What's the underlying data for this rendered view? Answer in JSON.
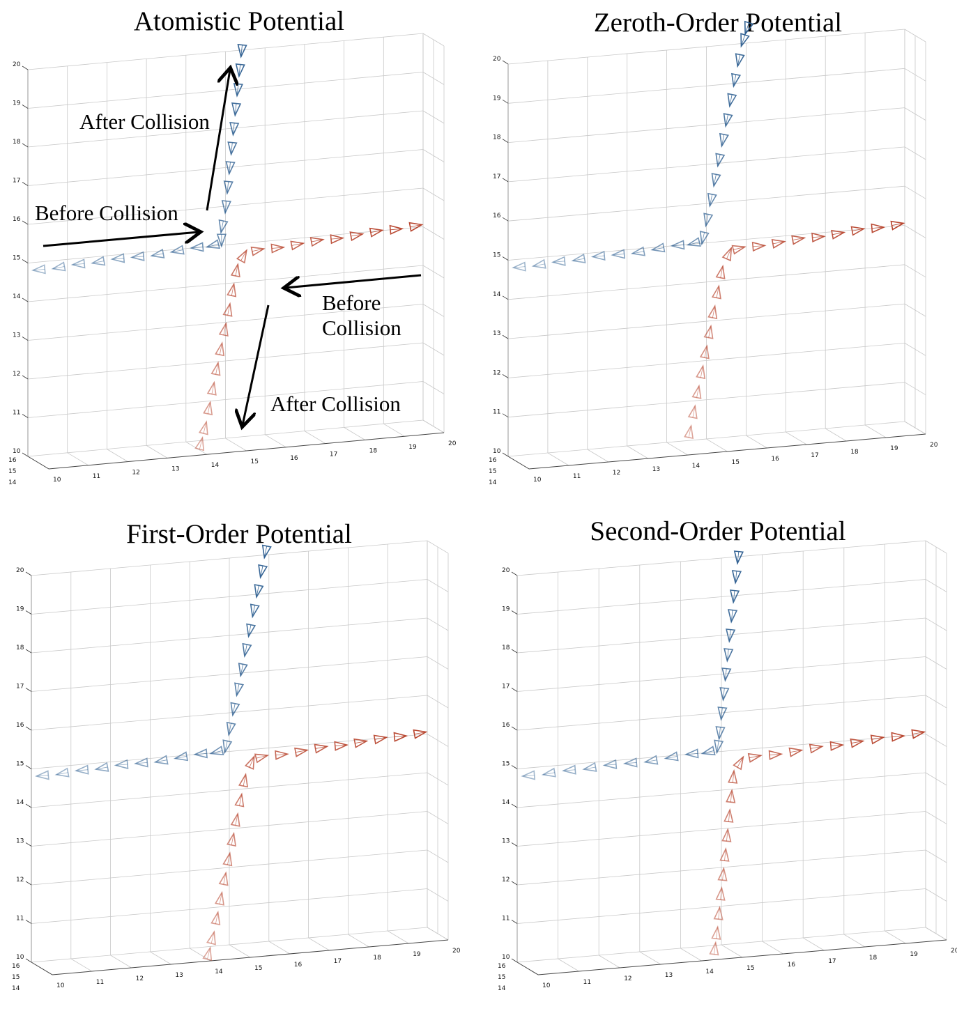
{
  "chart_data": [
    {
      "type": "scatter",
      "title": "Atomistic Potential",
      "xlabel": "",
      "ylabel": "",
      "zlabel": "",
      "xlim": [
        10,
        20
      ],
      "ylim": [
        14,
        16
      ],
      "zlim": [
        10,
        20
      ],
      "grid": true,
      "x_ticks": [
        "10",
        "11",
        "12",
        "13",
        "14",
        "15",
        "16",
        "17",
        "18",
        "19",
        "20"
      ],
      "y_ticks": [
        "14",
        "15",
        "16"
      ],
      "z_ticks": [
        "10",
        "11",
        "12",
        "13",
        "14",
        "15",
        "16",
        "17",
        "18",
        "19",
        "20"
      ],
      "series": [
        {
          "color": "#2e5f91",
          "x": [
            10.2,
            10.7,
            11.2,
            11.7,
            12.2,
            12.7,
            13.2,
            13.7,
            14.2,
            14.6,
            14.9,
            14.9,
            15.0,
            15.05,
            15.1,
            15.15,
            15.2,
            15.25,
            15.3,
            15.35,
            15.4
          ],
          "z": [
            14.8,
            14.8,
            14.85,
            14.85,
            14.9,
            14.9,
            14.9,
            14.95,
            15.0,
            15.0,
            15.05,
            15.4,
            15.9,
            16.4,
            16.9,
            17.4,
            17.9,
            18.4,
            18.9,
            19.4,
            19.9
          ]
        },
        {
          "color": "#b8452e",
          "x": [
            19.9,
            19.4,
            18.9,
            18.4,
            17.9,
            17.4,
            16.9,
            16.4,
            15.9,
            15.5,
            15.3,
            15.2,
            15.1,
            15.0,
            14.9,
            14.8,
            14.7,
            14.6,
            14.5,
            14.4
          ],
          "z": [
            15.05,
            15.0,
            15.0,
            14.95,
            14.9,
            14.9,
            14.85,
            14.8,
            14.8,
            14.75,
            14.4,
            13.9,
            13.4,
            12.9,
            12.4,
            11.9,
            11.4,
            10.9,
            10.4,
            10.0
          ]
        }
      ],
      "annotations": [
        "After Collision",
        "Before Collision",
        "Before",
        "Collision",
        "After Collision"
      ]
    },
    {
      "type": "scatter",
      "title": "Zeroth-Order Potential",
      "xlabel": "",
      "ylabel": "",
      "zlabel": "",
      "xlim": [
        10,
        20
      ],
      "ylim": [
        14,
        16
      ],
      "zlim": [
        10,
        20
      ],
      "grid": true,
      "x_ticks": [
        "10",
        "11",
        "12",
        "13",
        "14",
        "15",
        "16",
        "17",
        "18",
        "19",
        "20"
      ],
      "y_ticks": [
        "14",
        "15",
        "16"
      ],
      "z_ticks": [
        "10",
        "11",
        "12",
        "13",
        "14",
        "15",
        "16",
        "17",
        "18",
        "19",
        "20"
      ],
      "series": [
        {
          "color": "#2e5f91",
          "x": [
            10.2,
            10.7,
            11.2,
            11.7,
            12.2,
            12.7,
            13.2,
            13.7,
            14.2,
            14.6,
            14.9,
            15.0,
            15.1,
            15.2,
            15.3,
            15.4,
            15.5,
            15.6,
            15.7,
            15.8,
            15.9,
            16.0
          ],
          "z": [
            14.8,
            14.8,
            14.85,
            14.85,
            14.9,
            14.9,
            14.9,
            14.95,
            15.0,
            15.0,
            15.05,
            15.5,
            16.0,
            16.5,
            17.0,
            17.5,
            18.0,
            18.5,
            19.0,
            19.5,
            20.0,
            20.3
          ]
        },
        {
          "color": "#b8452e",
          "x": [
            19.9,
            19.4,
            18.9,
            18.4,
            17.9,
            17.4,
            16.9,
            16.4,
            15.9,
            15.6,
            15.4,
            15.3,
            15.2,
            15.1,
            15.0,
            14.9,
            14.8,
            14.7,
            14.6
          ],
          "z": [
            15.05,
            15.0,
            15.0,
            14.95,
            14.9,
            14.9,
            14.85,
            14.8,
            14.8,
            14.75,
            14.3,
            13.8,
            13.3,
            12.8,
            12.3,
            11.8,
            11.3,
            10.8,
            10.3
          ]
        }
      ],
      "annotations": []
    },
    {
      "type": "scatter",
      "title": "First-Order Potential",
      "xlabel": "",
      "ylabel": "",
      "zlabel": "",
      "xlim": [
        10,
        20
      ],
      "ylim": [
        14,
        16
      ],
      "zlim": [
        10,
        20
      ],
      "grid": true,
      "x_ticks": [
        "10",
        "11",
        "12",
        "13",
        "14",
        "15",
        "16",
        "17",
        "18",
        "19",
        "20"
      ],
      "y_ticks": [
        "14",
        "15",
        "16"
      ],
      "z_ticks": [
        "10",
        "11",
        "12",
        "13",
        "14",
        "15",
        "16",
        "17",
        "18",
        "19",
        "20"
      ],
      "series": [
        {
          "color": "#2e5f91",
          "x": [
            10.2,
            10.7,
            11.2,
            11.7,
            12.2,
            12.7,
            13.2,
            13.7,
            14.2,
            14.6,
            14.9,
            15.0,
            15.1,
            15.2,
            15.3,
            15.4,
            15.5,
            15.6,
            15.7,
            15.8,
            15.9
          ],
          "z": [
            14.8,
            14.8,
            14.85,
            14.85,
            14.9,
            14.9,
            14.9,
            14.95,
            15.0,
            15.0,
            15.05,
            15.5,
            16.0,
            16.5,
            17.0,
            17.5,
            18.0,
            18.5,
            19.0,
            19.5,
            20.0
          ]
        },
        {
          "color": "#b8452e",
          "x": [
            19.9,
            19.4,
            18.9,
            18.4,
            17.9,
            17.4,
            16.9,
            16.4,
            15.9,
            15.6,
            15.4,
            15.3,
            15.2,
            15.1,
            15.0,
            14.9,
            14.8,
            14.7,
            14.6,
            14.5
          ],
          "z": [
            15.05,
            15.0,
            15.0,
            14.95,
            14.9,
            14.9,
            14.85,
            14.8,
            14.8,
            14.75,
            14.3,
            13.8,
            13.3,
            12.8,
            12.3,
            11.8,
            11.3,
            10.8,
            10.3,
            9.9
          ]
        }
      ],
      "annotations": []
    },
    {
      "type": "scatter",
      "title": "Second-Order Potential",
      "xlabel": "",
      "ylabel": "",
      "zlabel": "",
      "xlim": [
        10,
        20
      ],
      "ylim": [
        14,
        16
      ],
      "zlim": [
        10,
        20
      ],
      "grid": true,
      "x_ticks": [
        "10",
        "11",
        "12",
        "13",
        "14",
        "15",
        "16",
        "17",
        "18",
        "19",
        "20"
      ],
      "y_ticks": [
        "14",
        "15",
        "16"
      ],
      "z_ticks": [
        "10",
        "11",
        "12",
        "13",
        "14",
        "15",
        "16",
        "17",
        "18",
        "19",
        "20"
      ],
      "series": [
        {
          "color": "#2e5f91",
          "x": [
            10.2,
            10.7,
            11.2,
            11.7,
            12.2,
            12.7,
            13.2,
            13.7,
            14.2,
            14.6,
            14.9,
            14.95,
            15.0,
            15.05,
            15.1,
            15.15,
            15.2,
            15.25,
            15.3,
            15.35,
            15.4
          ],
          "z": [
            14.8,
            14.8,
            14.85,
            14.85,
            14.9,
            14.9,
            14.9,
            14.95,
            15.0,
            15.0,
            15.05,
            15.4,
            15.9,
            16.4,
            16.9,
            17.4,
            17.9,
            18.4,
            18.9,
            19.4,
            19.9
          ]
        },
        {
          "color": "#b8452e",
          "x": [
            19.9,
            19.4,
            18.9,
            18.4,
            17.9,
            17.4,
            16.9,
            16.4,
            15.9,
            15.5,
            15.3,
            15.25,
            15.2,
            15.15,
            15.1,
            15.05,
            15.0,
            14.95,
            14.9,
            14.85
          ],
          "z": [
            15.05,
            15.0,
            15.0,
            14.95,
            14.9,
            14.9,
            14.85,
            14.8,
            14.8,
            14.75,
            14.4,
            13.9,
            13.4,
            12.9,
            12.4,
            11.9,
            11.4,
            10.9,
            10.4,
            10.0
          ]
        }
      ],
      "annotations": []
    }
  ]
}
